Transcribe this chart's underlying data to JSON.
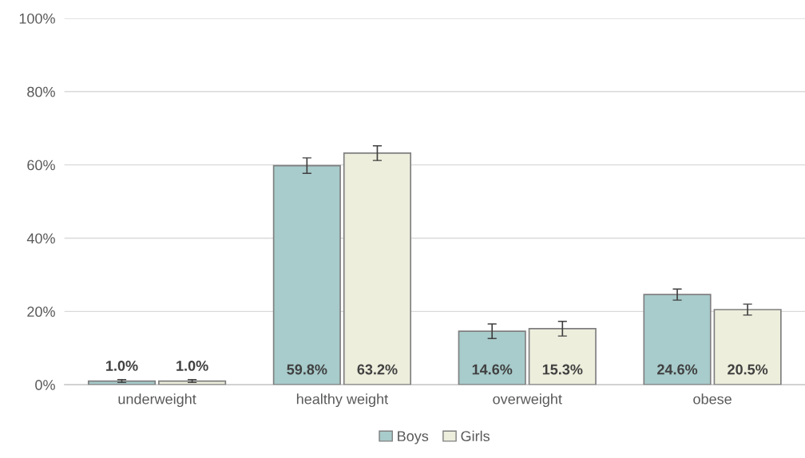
{
  "chart_data": {
    "type": "bar",
    "categories": [
      "underweight",
      "healthy weight",
      "overweight",
      "obese"
    ],
    "series": [
      {
        "name": "Boys",
        "color": "#a8cbcb",
        "values": [
          1.0,
          59.8,
          14.6,
          24.6
        ],
        "errors": [
          0.4,
          2.1,
          2.0,
          1.5
        ],
        "value_labels": [
          "1.0%",
          "59.8%",
          "14.6%",
          "24.6%"
        ]
      },
      {
        "name": "Girls",
        "color": "#eeeedd",
        "values": [
          1.0,
          63.2,
          15.3,
          20.5
        ],
        "errors": [
          0.4,
          2.0,
          2.0,
          1.5
        ],
        "value_labels": [
          "1.0%",
          "63.2%",
          "15.3%",
          "20.5%"
        ]
      }
    ],
    "ylim": [
      0,
      100
    ],
    "yticks": [
      {
        "value": 0,
        "label": "0%"
      },
      {
        "value": 20,
        "label": "20%"
      },
      {
        "value": 40,
        "label": "40%"
      },
      {
        "value": 60,
        "label": "60%"
      },
      {
        "value": 80,
        "label": "80%"
      },
      {
        "value": 100,
        "label": "100%"
      }
    ],
    "grid": "y",
    "legend": "bottom"
  }
}
